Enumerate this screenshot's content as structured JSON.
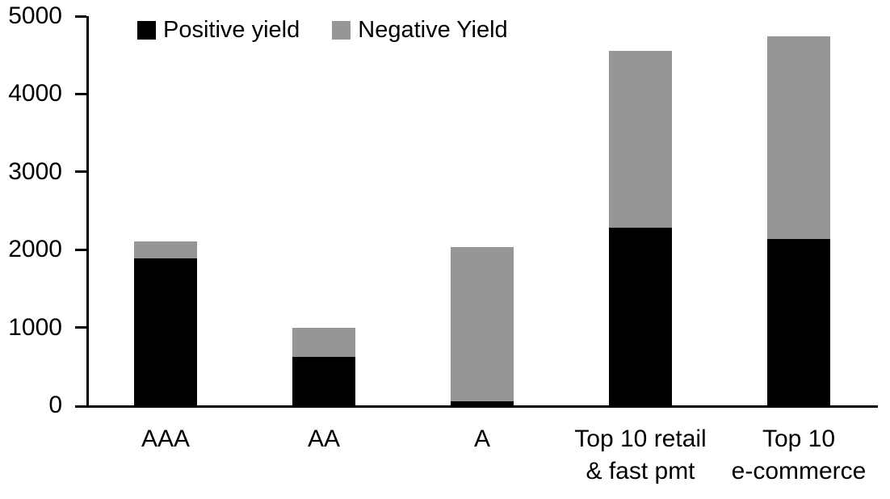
{
  "chart_data": {
    "type": "bar",
    "stacked": true,
    "categories": [
      "AAA",
      "AA",
      "A",
      "Top 10 retail & fast pmt",
      "Top 10 e-commerce"
    ],
    "category_label_lines": [
      [
        "AAA"
      ],
      [
        "AA"
      ],
      [
        "A"
      ],
      [
        "Top 10 retail",
        "& fast pmt"
      ],
      [
        "Top 10",
        "e-commerce"
      ]
    ],
    "series": [
      {
        "name": "Positive yield",
        "color": "#000000",
        "values": [
          1890,
          620,
          50,
          2280,
          2140
        ]
      },
      {
        "name": "Negative Yield",
        "color": "#969696",
        "values": [
          220,
          380,
          1980,
          2270,
          2600
        ]
      }
    ],
    "ylim": [
      0,
      5000
    ],
    "yticks": [
      0,
      1000,
      2000,
      3000,
      4000,
      5000
    ],
    "grid": false,
    "legend_position": "top",
    "axis_color": "#000000",
    "background_color": "#ffffff"
  }
}
